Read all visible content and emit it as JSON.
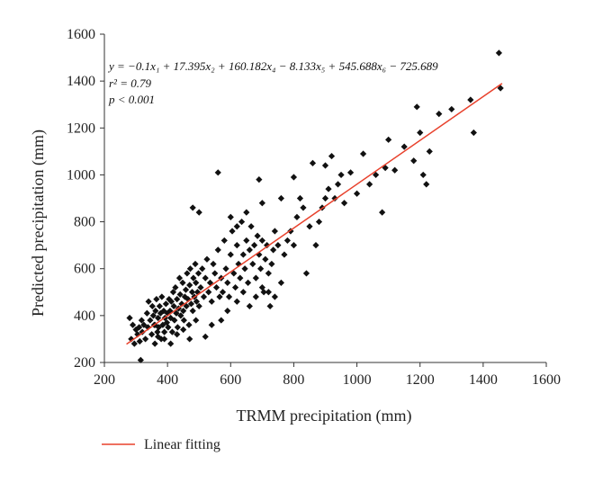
{
  "chart_data": {
    "type": "scatter",
    "title": "",
    "xlabel": "TRMM precipitation (mm)",
    "ylabel": "Predicted precipitation (mm)",
    "xlim": [
      200,
      1600
    ],
    "ylim": [
      200,
      1600
    ],
    "xticks": [
      200,
      400,
      600,
      800,
      1000,
      1200,
      1400,
      1600
    ],
    "yticks": [
      200,
      400,
      600,
      800,
      1000,
      1200,
      1400,
      1600
    ],
    "grid": false,
    "annotation": {
      "equation": "y = −0.1x₁ + 17.395x₂ + 160.182x₄ − 8.133x₅ + 545.688x₆ − 725.689",
      "r_squared": "r² = 0.79",
      "p_value": "p < 0.001"
    },
    "legend": {
      "position": "bottom-left",
      "entries": [
        "Linear fitting"
      ]
    },
    "colors": {
      "points": "#111111",
      "fit_line": "#e8412c",
      "axis": "#333333"
    },
    "fit_line": {
      "x": [
        270,
        1460
      ],
      "y": [
        278,
        1390
      ]
    },
    "series": [
      {
        "type": "scatter",
        "points": [
          [
            280,
            390
          ],
          [
            285,
            300
          ],
          [
            290,
            360
          ],
          [
            295,
            280
          ],
          [
            300,
            340
          ],
          [
            305,
            320
          ],
          [
            310,
            350
          ],
          [
            312,
            290
          ],
          [
            315,
            210
          ],
          [
            318,
            380
          ],
          [
            320,
            330
          ],
          [
            325,
            360
          ],
          [
            330,
            300
          ],
          [
            335,
            410
          ],
          [
            338,
            350
          ],
          [
            340,
            460
          ],
          [
            345,
            380
          ],
          [
            350,
            320
          ],
          [
            352,
            440
          ],
          [
            355,
            400
          ],
          [
            358,
            360
          ],
          [
            360,
            280
          ],
          [
            362,
            420
          ],
          [
            365,
            470
          ],
          [
            368,
            330
          ],
          [
            370,
            390
          ],
          [
            372,
            350
          ],
          [
            375,
            440
          ],
          [
            378,
            410
          ],
          [
            380,
            300
          ],
          [
            382,
            480
          ],
          [
            385,
            360
          ],
          [
            388,
            420
          ],
          [
            390,
            330
          ],
          [
            392,
            390
          ],
          [
            395,
            450
          ],
          [
            398,
            370
          ],
          [
            400,
            410
          ],
          [
            402,
            350
          ],
          [
            405,
            470
          ],
          [
            408,
            420
          ],
          [
            410,
            390
          ],
          [
            412,
            460
          ],
          [
            415,
            330
          ],
          [
            418,
            500
          ],
          [
            420,
            440
          ],
          [
            422,
            380
          ],
          [
            425,
            520
          ],
          [
            428,
            410
          ],
          [
            430,
            470
          ],
          [
            432,
            350
          ],
          [
            435,
            430
          ],
          [
            438,
            560
          ],
          [
            440,
            490
          ],
          [
            442,
            400
          ],
          [
            445,
            450
          ],
          [
            448,
            540
          ],
          [
            450,
            420
          ],
          [
            452,
            380
          ],
          [
            455,
            480
          ],
          [
            458,
            510
          ],
          [
            460,
            440
          ],
          [
            462,
            580
          ],
          [
            465,
            470
          ],
          [
            468,
            360
          ],
          [
            470,
            530
          ],
          [
            472,
            600
          ],
          [
            475,
            450
          ],
          [
            478,
            500
          ],
          [
            480,
            420
          ],
          [
            482,
            560
          ],
          [
            485,
            480
          ],
          [
            488,
            620
          ],
          [
            490,
            540
          ],
          [
            492,
            460
          ],
          [
            495,
            500
          ],
          [
            498,
            580
          ],
          [
            500,
            440
          ],
          [
            505,
            520
          ],
          [
            510,
            600
          ],
          [
            515,
            480
          ],
          [
            520,
            560
          ],
          [
            525,
            640
          ],
          [
            530,
            500
          ],
          [
            535,
            540
          ],
          [
            540,
            460
          ],
          [
            545,
            620
          ],
          [
            550,
            580
          ],
          [
            555,
            520
          ],
          [
            560,
            680
          ],
          [
            565,
            480
          ],
          [
            570,
            560
          ],
          [
            575,
            500
          ],
          [
            580,
            720
          ],
          [
            585,
            600
          ],
          [
            590,
            540
          ],
          [
            595,
            480
          ],
          [
            600,
            660
          ],
          [
            605,
            760
          ],
          [
            610,
            580
          ],
          [
            615,
            520
          ],
          [
            620,
            700
          ],
          [
            625,
            620
          ],
          [
            630,
            560
          ],
          [
            635,
            800
          ],
          [
            640,
            660
          ],
          [
            645,
            600
          ],
          [
            650,
            720
          ],
          [
            655,
            540
          ],
          [
            660,
            680
          ],
          [
            665,
            780
          ],
          [
            670,
            620
          ],
          [
            675,
            700
          ],
          [
            680,
            560
          ],
          [
            685,
            740
          ],
          [
            690,
            660
          ],
          [
            695,
            600
          ],
          [
            700,
            720
          ],
          [
            705,
            500
          ],
          [
            710,
            640
          ],
          [
            715,
            700
          ],
          [
            720,
            580
          ],
          [
            725,
            440
          ],
          [
            730,
            620
          ],
          [
            735,
            680
          ],
          [
            740,
            760
          ],
          [
            750,
            700
          ],
          [
            760,
            540
          ],
          [
            770,
            660
          ],
          [
            780,
            720
          ],
          [
            790,
            760
          ],
          [
            800,
            700
          ],
          [
            810,
            820
          ],
          [
            820,
            900
          ],
          [
            830,
            860
          ],
          [
            840,
            580
          ],
          [
            850,
            780
          ],
          [
            860,
            1050
          ],
          [
            870,
            700
          ],
          [
            880,
            800
          ],
          [
            890,
            860
          ],
          [
            900,
            1040
          ],
          [
            910,
            940
          ],
          [
            920,
            1080
          ],
          [
            930,
            900
          ],
          [
            940,
            960
          ],
          [
            950,
            1000
          ],
          [
            960,
            880
          ],
          [
            980,
            1010
          ],
          [
            1000,
            920
          ],
          [
            1020,
            1090
          ],
          [
            1040,
            960
          ],
          [
            1060,
            1000
          ],
          [
            1080,
            840
          ],
          [
            1090,
            1030
          ],
          [
            1100,
            1150
          ],
          [
            1120,
            1020
          ],
          [
            1150,
            1120
          ],
          [
            1180,
            1060
          ],
          [
            1190,
            1290
          ],
          [
            1200,
            1180
          ],
          [
            1210,
            1000
          ],
          [
            1220,
            960
          ],
          [
            1230,
            1100
          ],
          [
            1260,
            1260
          ],
          [
            1300,
            1280
          ],
          [
            1360,
            1320
          ],
          [
            1370,
            1180
          ],
          [
            1450,
            1520
          ],
          [
            1455,
            1370
          ],
          [
            360,
            360
          ],
          [
            370,
            310
          ],
          [
            390,
            300
          ],
          [
            410,
            280
          ],
          [
            430,
            320
          ],
          [
            450,
            340
          ],
          [
            470,
            300
          ],
          [
            490,
            380
          ],
          [
            520,
            310
          ],
          [
            540,
            360
          ],
          [
            570,
            380
          ],
          [
            590,
            420
          ],
          [
            620,
            460
          ],
          [
            640,
            500
          ],
          [
            660,
            440
          ],
          [
            680,
            480
          ],
          [
            700,
            520
          ],
          [
            720,
            500
          ],
          [
            740,
            480
          ],
          [
            480,
            860
          ],
          [
            500,
            840
          ],
          [
            560,
            1010
          ],
          [
            600,
            820
          ],
          [
            620,
            780
          ],
          [
            650,
            840
          ],
          [
            690,
            980
          ],
          [
            700,
            880
          ],
          [
            760,
            900
          ],
          [
            800,
            990
          ],
          [
            900,
            900
          ]
        ]
      }
    ]
  }
}
